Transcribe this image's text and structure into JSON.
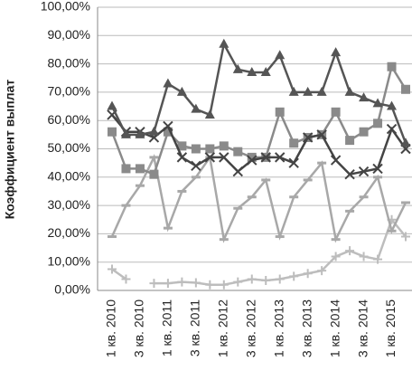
{
  "chart_data": {
    "type": "line",
    "y_label": "Коэффициент выплат",
    "categories": [
      "1 кв. 2010",
      null,
      "3 кв. 2010",
      null,
      "1 кв. 2011",
      null,
      "3 кв. 2011",
      null,
      "1 кв. 2012",
      null,
      "3 кв. 2012",
      null,
      "1 кв. 2013",
      null,
      "3 кв. 2013",
      null,
      "1 кв. 2014",
      null,
      "3 кв. 2014",
      null,
      "1 кв. 2015",
      null
    ],
    "series": [
      {
        "color": "#555555",
        "marker": "triangle",
        "values": [
          65,
          55,
          55,
          56,
          73,
          70,
          64,
          62,
          87,
          78,
          77,
          77,
          83,
          70,
          70,
          70,
          84,
          70,
          68,
          66,
          65,
          52
        ]
      },
      {
        "color": "#444444",
        "marker": "x",
        "values": [
          62,
          56,
          56,
          54,
          58,
          47,
          44,
          47,
          47,
          42,
          46,
          47,
          47,
          45,
          54,
          55,
          46,
          41,
          42,
          43,
          57,
          50
        ]
      },
      {
        "color": "#8a8a8a",
        "marker": "square",
        "values": [
          56,
          43,
          43,
          41,
          56,
          51,
          50,
          50,
          51,
          49,
          47,
          47,
          63,
          52,
          54,
          55,
          63,
          53,
          56,
          59,
          79,
          71
        ]
      },
      {
        "color": "#a8a8a8",
        "marker": "dash",
        "values": [
          19,
          30,
          37,
          47,
          22,
          35,
          40,
          47,
          18,
          29,
          33,
          39,
          19,
          33,
          39,
          45,
          18,
          28,
          33,
          40,
          21,
          31
        ]
      },
      {
        "color": "#bdbdbd",
        "marker": "plus",
        "values": [
          7.5,
          4,
          null,
          2.5,
          2.5,
          3,
          2.7,
          2,
          2,
          3,
          4,
          3.5,
          4,
          5,
          6,
          7,
          12,
          14,
          12,
          11,
          25,
          19
        ]
      }
    ],
    "ylim": [
      0,
      100
    ],
    "yticks": [
      {
        "value": 0,
        "label": "0,00%"
      },
      {
        "value": 10,
        "label": "10,00%"
      },
      {
        "value": 20,
        "label": "20,00%"
      },
      {
        "value": 30,
        "label": "30,00%"
      },
      {
        "value": 40,
        "label": "40,00%"
      },
      {
        "value": 50,
        "label": "50,00%"
      },
      {
        "value": 60,
        "label": "60,00%"
      },
      {
        "value": 70,
        "label": "70,00%"
      },
      {
        "value": 80,
        "label": "80,00%"
      },
      {
        "value": 90,
        "label": "90,00%"
      },
      {
        "value": 100,
        "label": "100,00%"
      }
    ],
    "grid": true
  }
}
